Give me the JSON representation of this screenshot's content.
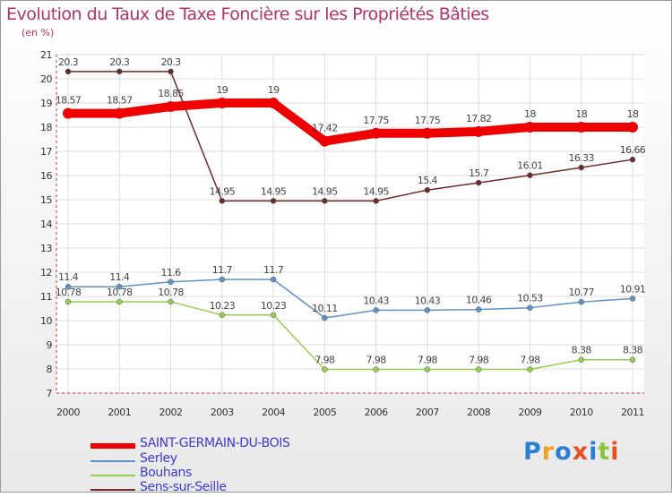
{
  "header": {
    "title": "Evolution du Taux de Taxe Foncière sur les Propriétés Bâties",
    "subtitle": "(en %)"
  },
  "logo_text": "Proxiti",
  "chart_data": {
    "type": "line",
    "title": "Evolution du Taux de Taxe Foncière sur les Propriétés Bâties",
    "ylabel": "(en %)",
    "xlabel": "",
    "categories": [
      "2000",
      "2001",
      "2002",
      "2003",
      "2004",
      "2005",
      "2006",
      "2007",
      "2008",
      "2009",
      "2010",
      "2011"
    ],
    "ylim": [
      7,
      21
    ],
    "yticks": [
      "7",
      "8",
      "9",
      "10",
      "11",
      "12",
      "13",
      "14",
      "15",
      "16",
      "17",
      "18",
      "19",
      "20",
      "21"
    ],
    "grid": true,
    "legend_position": "bottom-left",
    "series": [
      {
        "name": "SAINT-GERMAIN-DU-BOIS",
        "color": "#ee0000",
        "values": [
          18.57,
          18.57,
          18.85,
          19,
          19,
          17.42,
          17.75,
          17.75,
          17.82,
          18,
          18,
          18
        ],
        "labels": [
          "18.57",
          "18.57",
          "18.85",
          "19",
          "19",
          "17.42",
          "17.75",
          "17.75",
          "17.82",
          "18",
          "18",
          "18"
        ]
      },
      {
        "name": "Serley",
        "color": "#5d93c9",
        "values": [
          11.4,
          11.4,
          11.6,
          11.7,
          11.7,
          10.11,
          10.43,
          10.43,
          10.46,
          10.53,
          10.77,
          10.91
        ],
        "labels": [
          "11.4",
          "11.4",
          "11.6",
          "11.7",
          "11.7",
          "10.11",
          "10.43",
          "10.43",
          "10.46",
          "10.53",
          "10.77",
          "10.91"
        ]
      },
      {
        "name": "Bouhans",
        "color": "#92d050",
        "values": [
          10.78,
          10.78,
          10.78,
          10.23,
          10.23,
          7.98,
          7.98,
          7.98,
          7.98,
          7.98,
          8.38,
          8.38
        ],
        "labels": [
          "10.78",
          "10.78",
          "10.78",
          "10.23",
          "10.23",
          "7.98",
          "7.98",
          "7.98",
          "7.98",
          "7.98",
          "8.38",
          "8.38"
        ]
      },
      {
        "name": "Sens-sur-Seille",
        "color": "#6e2a2a",
        "values": [
          20.3,
          20.3,
          20.3,
          14.95,
          14.95,
          14.95,
          14.95,
          15.4,
          15.7,
          16.01,
          16.33,
          16.66
        ],
        "labels": [
          "20.3",
          "20.3",
          "20.3",
          "14.95",
          "14.95",
          "14.95",
          "14.95",
          "15.4",
          "15.7",
          "16.01",
          "16.33",
          "16.66"
        ]
      }
    ]
  }
}
